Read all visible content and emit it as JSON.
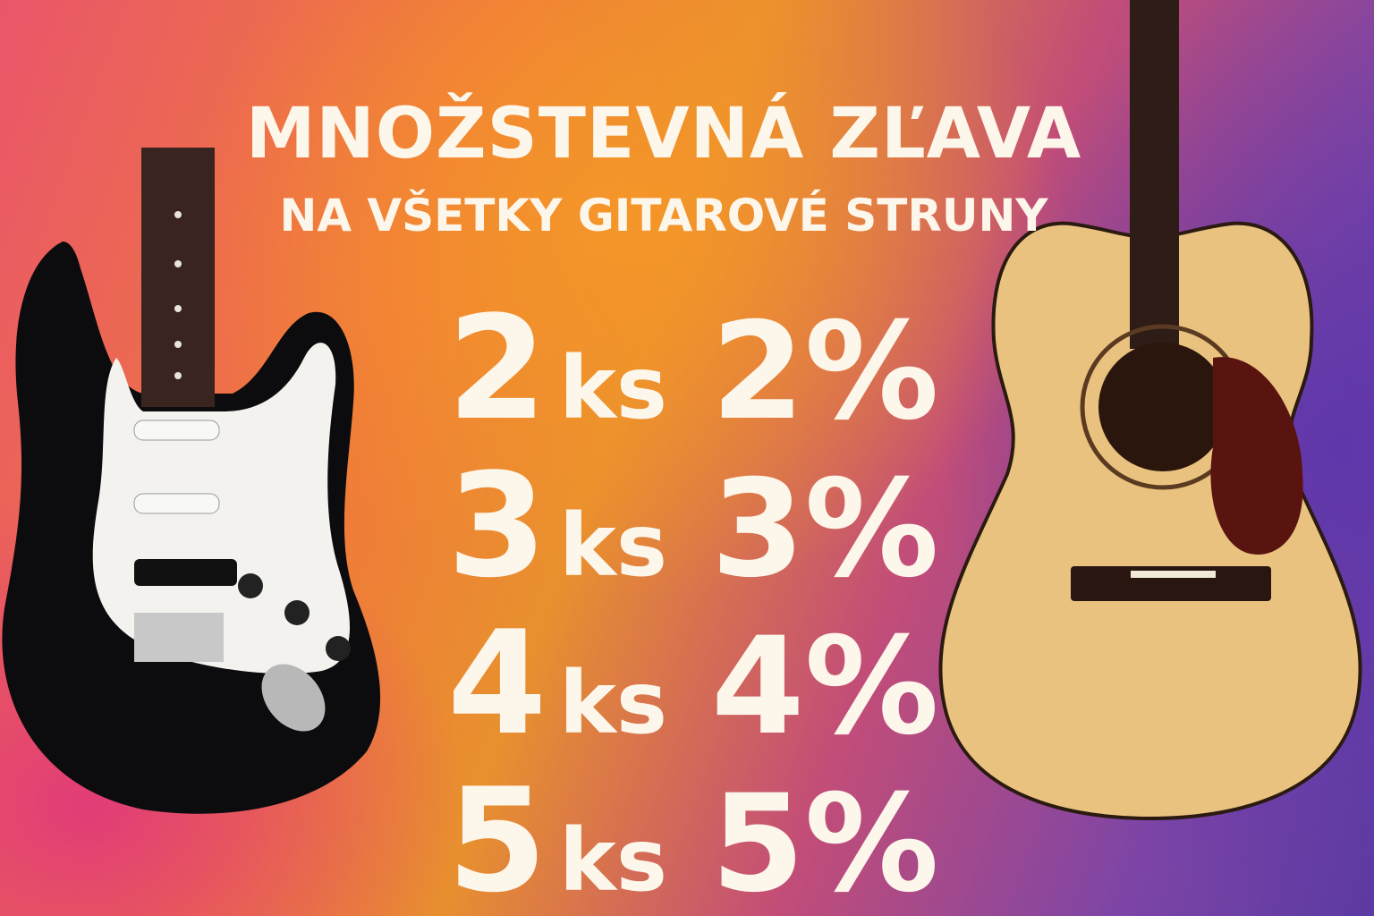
{
  "headline": "MNOŽSTEVNÁ ZĽAVA",
  "subheadline": "NA VŠETKY GITAROVÉ STRUNY",
  "tiers": [
    {
      "qty": "2",
      "unit": "ks",
      "discount": "2%"
    },
    {
      "qty": "3",
      "unit": "ks",
      "discount": "3%"
    },
    {
      "qty": "4",
      "unit": "ks",
      "discount": "4%"
    },
    {
      "qty": "5",
      "unit": "ks",
      "discount": "5%"
    }
  ],
  "colors": {
    "text": "#fdf6ea",
    "orange": "#f0902e",
    "pink": "#e9566a",
    "purple": "#5b3aa2"
  }
}
